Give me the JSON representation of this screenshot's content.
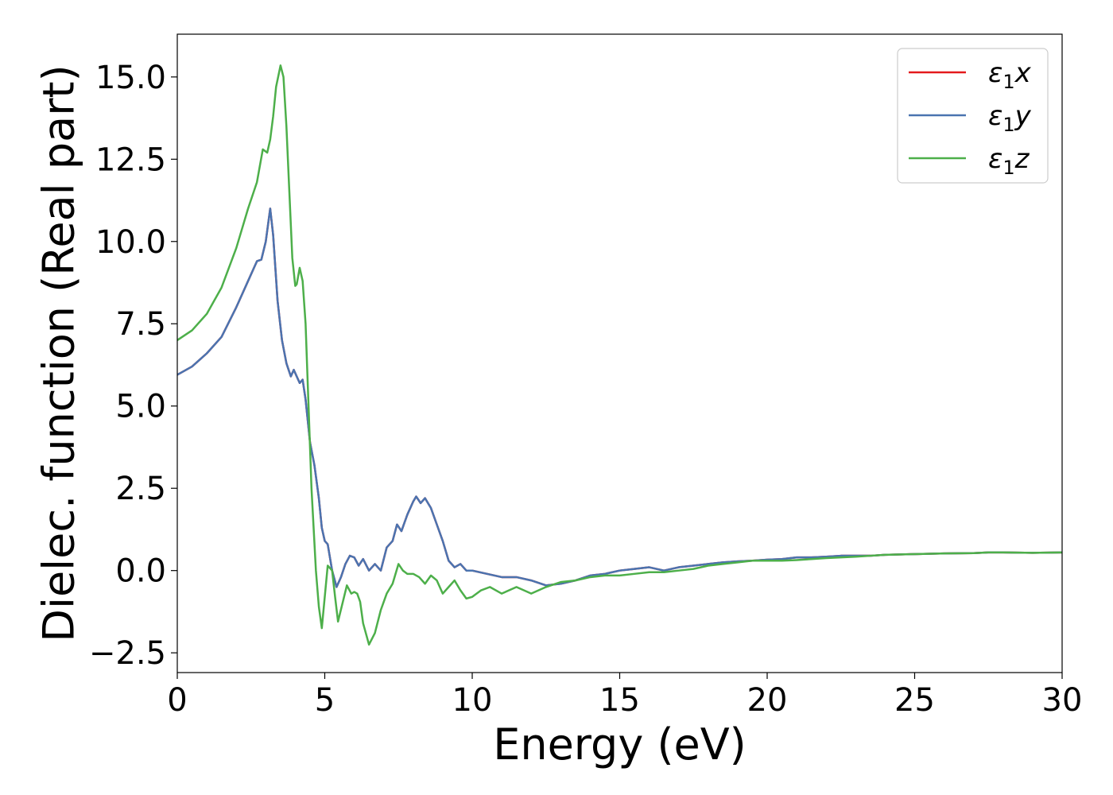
{
  "chart_data": {
    "type": "line",
    "title": "",
    "xlabel": "Energy (eV)",
    "ylabel": "Dielec. function (Real part)",
    "xlim": [
      0,
      30
    ],
    "ylim": [
      -3.1,
      16.3
    ],
    "x_ticks": [
      0,
      5,
      10,
      15,
      20,
      25,
      30
    ],
    "x_tick_labels": [
      "0",
      "5",
      "10",
      "15",
      "20",
      "25",
      "30"
    ],
    "y_ticks": [
      -2.5,
      0.0,
      2.5,
      5.0,
      7.5,
      10.0,
      12.5,
      15.0
    ],
    "y_tick_labels": [
      "−2.5",
      "0.0",
      "2.5",
      "5.0",
      "7.5",
      "10.0",
      "12.5",
      "15.0"
    ],
    "grid": false,
    "legend_position": "top-right",
    "series": [
      {
        "name": "ε1x",
        "legend_main": "ε",
        "legend_sub": "1",
        "legend_var": "x",
        "color": "#e41a1c",
        "x": [
          0,
          0.5,
          1.0,
          1.5,
          2.0,
          2.4,
          2.7,
          2.85,
          3.0,
          3.15,
          3.25,
          3.4,
          3.55,
          3.7,
          3.85,
          3.95,
          4.05,
          4.15,
          4.25,
          4.35,
          4.5,
          4.65,
          4.8,
          4.9,
          5.0,
          5.1,
          5.25,
          5.4,
          5.55,
          5.7,
          5.85,
          6.0,
          6.15,
          6.3,
          6.5,
          6.7,
          6.9,
          7.1,
          7.3,
          7.45,
          7.6,
          7.8,
          8.0,
          8.1,
          8.25,
          8.4,
          8.6,
          8.8,
          9.0,
          9.2,
          9.4,
          9.6,
          9.8,
          10.0,
          10.5,
          11.0,
          11.5,
          12.0,
          12.5,
          13.0,
          13.5,
          14.0,
          14.5,
          15.0,
          15.5,
          16.0,
          16.5,
          17.0,
          17.5,
          18.0,
          18.5,
          19.0,
          19.5,
          20.0,
          20.5,
          21.0,
          21.5,
          22.0,
          22.5,
          23.0,
          23.5,
          24.0,
          25.0,
          26.0,
          27.0,
          27.5,
          28.0,
          29.0,
          30.0
        ],
        "y": [
          5.95,
          6.2,
          6.6,
          7.1,
          8.0,
          8.8,
          9.4,
          9.45,
          10.0,
          11.0,
          10.2,
          8.2,
          7.0,
          6.3,
          5.9,
          6.1,
          5.9,
          5.7,
          5.8,
          5.2,
          3.9,
          3.2,
          2.2,
          1.3,
          0.9,
          0.8,
          0.0,
          -0.5,
          -0.2,
          0.2,
          0.45,
          0.4,
          0.15,
          0.35,
          0.0,
          0.2,
          0.0,
          0.7,
          0.9,
          1.4,
          1.2,
          1.7,
          2.1,
          2.25,
          2.05,
          2.2,
          1.9,
          1.4,
          0.9,
          0.3,
          0.1,
          0.2,
          0.0,
          0.0,
          -0.1,
          -0.2,
          -0.2,
          -0.3,
          -0.45,
          -0.4,
          -0.3,
          -0.15,
          -0.1,
          0.0,
          0.05,
          0.1,
          0.0,
          0.1,
          0.15,
          0.2,
          0.25,
          0.28,
          0.3,
          0.33,
          0.35,
          0.4,
          0.4,
          0.42,
          0.45,
          0.45,
          0.45,
          0.48,
          0.5,
          0.52,
          0.53,
          0.55,
          0.55,
          0.54,
          0.55
        ]
      },
      {
        "name": "ε1y",
        "legend_main": "ε",
        "legend_sub": "1",
        "legend_var": "y",
        "color": "#4a74b0",
        "x": [
          0,
          0.5,
          1.0,
          1.5,
          2.0,
          2.4,
          2.7,
          2.85,
          3.0,
          3.15,
          3.25,
          3.4,
          3.55,
          3.7,
          3.85,
          3.95,
          4.05,
          4.15,
          4.25,
          4.35,
          4.5,
          4.65,
          4.8,
          4.9,
          5.0,
          5.1,
          5.25,
          5.4,
          5.55,
          5.7,
          5.85,
          6.0,
          6.15,
          6.3,
          6.5,
          6.7,
          6.9,
          7.1,
          7.3,
          7.45,
          7.6,
          7.8,
          8.0,
          8.1,
          8.25,
          8.4,
          8.6,
          8.8,
          9.0,
          9.2,
          9.4,
          9.6,
          9.8,
          10.0,
          10.5,
          11.0,
          11.5,
          12.0,
          12.5,
          13.0,
          13.5,
          14.0,
          14.5,
          15.0,
          15.5,
          16.0,
          16.5,
          17.0,
          17.5,
          18.0,
          18.5,
          19.0,
          19.5,
          20.0,
          20.5,
          21.0,
          21.5,
          22.0,
          22.5,
          23.0,
          23.5,
          24.0,
          25.0,
          26.0,
          27.0,
          27.5,
          28.0,
          29.0,
          30.0
        ],
        "y": [
          5.95,
          6.2,
          6.6,
          7.1,
          8.0,
          8.8,
          9.4,
          9.45,
          10.0,
          11.0,
          10.2,
          8.2,
          7.0,
          6.3,
          5.9,
          6.1,
          5.9,
          5.7,
          5.8,
          5.2,
          3.9,
          3.2,
          2.2,
          1.3,
          0.9,
          0.8,
          0.0,
          -0.5,
          -0.2,
          0.2,
          0.45,
          0.4,
          0.15,
          0.35,
          0.0,
          0.2,
          0.0,
          0.7,
          0.9,
          1.4,
          1.2,
          1.7,
          2.1,
          2.25,
          2.05,
          2.2,
          1.9,
          1.4,
          0.9,
          0.3,
          0.1,
          0.2,
          0.0,
          0.0,
          -0.1,
          -0.2,
          -0.2,
          -0.3,
          -0.45,
          -0.4,
          -0.3,
          -0.15,
          -0.1,
          0.0,
          0.05,
          0.1,
          0.0,
          0.1,
          0.15,
          0.2,
          0.25,
          0.28,
          0.3,
          0.33,
          0.35,
          0.4,
          0.4,
          0.42,
          0.45,
          0.45,
          0.45,
          0.48,
          0.5,
          0.52,
          0.53,
          0.55,
          0.55,
          0.54,
          0.55
        ]
      },
      {
        "name": "ε1z",
        "legend_main": "ε",
        "legend_sub": "1",
        "legend_var": "z",
        "color": "#4daf4a",
        "x": [
          0,
          0.5,
          1.0,
          1.5,
          2.0,
          2.4,
          2.7,
          2.9,
          3.05,
          3.15,
          3.25,
          3.35,
          3.5,
          3.6,
          3.7,
          3.8,
          3.9,
          4.0,
          4.05,
          4.15,
          4.25,
          4.35,
          4.45,
          4.55,
          4.7,
          4.8,
          4.9,
          5.0,
          5.1,
          5.25,
          5.35,
          5.45,
          5.6,
          5.75,
          5.9,
          6.0,
          6.1,
          6.2,
          6.3,
          6.5,
          6.7,
          6.9,
          7.1,
          7.3,
          7.5,
          7.65,
          7.8,
          8.0,
          8.2,
          8.4,
          8.6,
          8.8,
          9.0,
          9.2,
          9.4,
          9.6,
          9.8,
          10.0,
          10.3,
          10.6,
          11.0,
          11.5,
          12.0,
          12.5,
          13.0,
          13.5,
          14.0,
          14.5,
          15.0,
          15.5,
          16.0,
          16.5,
          17.0,
          17.5,
          18.0,
          18.5,
          19.0,
          19.5,
          20.0,
          20.5,
          21.0,
          21.5,
          22.0,
          22.5,
          23.0,
          23.5,
          24.0,
          25.0,
          26.0,
          27.0,
          27.5,
          28.0,
          29.0,
          30.0
        ],
        "y": [
          7.0,
          7.3,
          7.8,
          8.6,
          9.8,
          11.0,
          11.8,
          12.8,
          12.7,
          13.1,
          13.8,
          14.7,
          15.35,
          15.0,
          13.5,
          11.5,
          9.5,
          8.65,
          8.7,
          9.2,
          8.8,
          7.5,
          5.0,
          2.5,
          0.0,
          -1.1,
          -1.75,
          -0.8,
          0.15,
          0.0,
          -0.8,
          -1.55,
          -1.0,
          -0.45,
          -0.7,
          -0.65,
          -0.7,
          -0.95,
          -1.6,
          -2.25,
          -1.9,
          -1.2,
          -0.7,
          -0.4,
          0.2,
          0.0,
          -0.1,
          -0.1,
          -0.2,
          -0.4,
          -0.15,
          -0.3,
          -0.7,
          -0.5,
          -0.3,
          -0.6,
          -0.85,
          -0.8,
          -0.6,
          -0.5,
          -0.7,
          -0.5,
          -0.7,
          -0.5,
          -0.35,
          -0.3,
          -0.2,
          -0.15,
          -0.15,
          -0.1,
          -0.05,
          -0.05,
          0.0,
          0.05,
          0.15,
          0.2,
          0.25,
          0.3,
          0.3,
          0.3,
          0.32,
          0.35,
          0.38,
          0.4,
          0.42,
          0.45,
          0.48,
          0.5,
          0.52,
          0.53,
          0.55,
          0.55,
          0.54,
          0.55
        ]
      }
    ]
  }
}
